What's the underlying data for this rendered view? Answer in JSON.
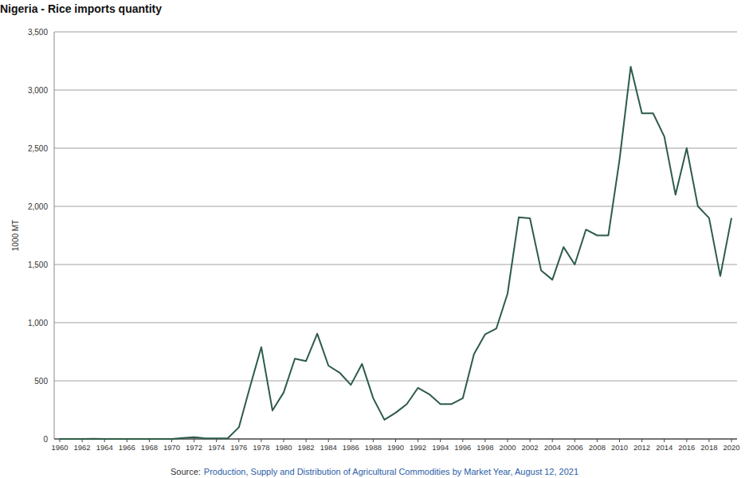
{
  "chart_data": {
    "type": "line",
    "title": "Nigeria - Rice imports quantity",
    "y_label": "1000 MT",
    "source": {
      "label": "Source:",
      "text": "Production, Supply and Distribution of Agricultural Commodities by Market Year, August 12, 2021"
    },
    "x": [
      1960,
      1961,
      1962,
      1963,
      1964,
      1965,
      1966,
      1967,
      1968,
      1969,
      1970,
      1971,
      1972,
      1973,
      1974,
      1975,
      1976,
      1977,
      1978,
      1979,
      1980,
      1981,
      1982,
      1983,
      1984,
      1985,
      1986,
      1987,
      1988,
      1989,
      1990,
      1991,
      1992,
      1993,
      1994,
      1995,
      1996,
      1997,
      1998,
      1999,
      2000,
      2001,
      2002,
      2003,
      2004,
      2005,
      2006,
      2007,
      2008,
      2009,
      2010,
      2011,
      2012,
      2013,
      2014,
      2015,
      2016,
      2017,
      2018,
      2019,
      2020
    ],
    "values": [
      0,
      0,
      0,
      2,
      0,
      0,
      0,
      0,
      0,
      0,
      0,
      8,
      15,
      5,
      5,
      5,
      100,
      450,
      790,
      245,
      400,
      690,
      670,
      905,
      630,
      570,
      465,
      645,
      350,
      165,
      225,
      300,
      440,
      385,
      300,
      300,
      350,
      730,
      900,
      950,
      1250,
      1906,
      1897,
      1448,
      1369,
      1650,
      1500,
      1800,
      1750,
      1750,
      2400,
      3200,
      2800,
      2800,
      2600,
      2100,
      2500,
      2000,
      1900,
      1400,
      1900
    ],
    "color": "#2d5c48",
    "xlim": [
      1960,
      2020
    ],
    "xticks": [
      1960,
      1962,
      1964,
      1966,
      1968,
      1970,
      1972,
      1974,
      1976,
      1978,
      1980,
      1982,
      1984,
      1986,
      1988,
      1990,
      1992,
      1994,
      1996,
      1998,
      2000,
      2002,
      2004,
      2006,
      2008,
      2010,
      2012,
      2014,
      2016,
      2018,
      2020
    ],
    "ylim": [
      0,
      3500
    ],
    "yticks": [
      0,
      500,
      {
        "value": 1000,
        "label": "1,000"
      },
      {
        "value": 1500,
        "label": "1,500"
      },
      {
        "value": 2000,
        "label": "2,000"
      },
      {
        "value": 2500,
        "label": "2,500"
      },
      {
        "value": 3000,
        "label": "3,000"
      },
      {
        "value": 3500,
        "label": "3,500"
      }
    ],
    "grid": true
  }
}
